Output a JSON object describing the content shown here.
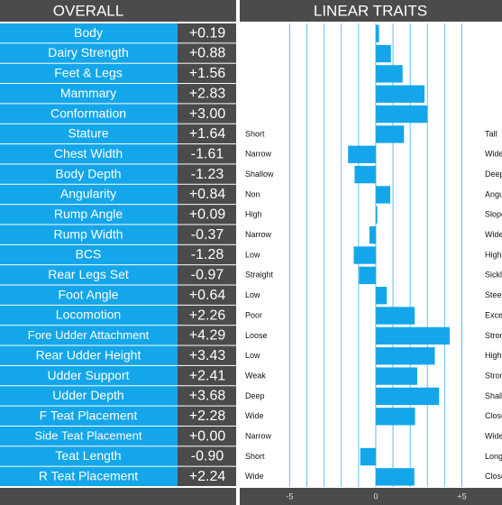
{
  "chart_data": {
    "type": "diverging-bar",
    "title": "OVERALL",
    "subtitle": "LINEAR TRAITS",
    "categories": [
      "Body",
      "Dairy Strength",
      "Feet & Legs",
      "Mammary",
      "Conformation",
      "Stature",
      "Chest Width",
      "Body Depth",
      "Angularity",
      "Rump Angle",
      "Rump Width",
      "BCS",
      "Rear Legs Set",
      "Foot Angle",
      "Locomotion",
      "Fore Udder Attachment",
      "Rear Udder Height",
      "Udder Support",
      "Udder Depth",
      "F Teat Placement",
      "Side Teat Placement",
      "Teat Length",
      "R Teat Placement"
    ],
    "values": [
      0.19,
      0.88,
      1.56,
      2.83,
      3.0,
      1.64,
      -1.61,
      -1.23,
      0.84,
      0.09,
      -0.37,
      -1.28,
      -0.97,
      0.64,
      2.26,
      4.29,
      3.43,
      2.41,
      3.68,
      2.28,
      0.0,
      -0.9,
      2.24
    ],
    "value_labels": [
      "+0.19",
      "+0.88",
      "+1.56",
      "+2.83",
      "+3.00",
      "+1.64",
      "-1.61",
      "-1.23",
      "+0.84",
      "+0.09",
      "-0.37",
      "-1.28",
      "-0.97",
      "+0.64",
      "+2.26",
      "+4.29",
      "+3.43",
      "+2.41",
      "+3.68",
      "+2.28",
      "+0.00",
      "-0.90",
      "+2.24"
    ],
    "left_labels": [
      null,
      null,
      null,
      null,
      null,
      "Short",
      "Narrow",
      "Shallow",
      "Non",
      "High",
      "Narrow",
      "Low",
      "Straight",
      "Low",
      "Poor",
      "Loose",
      "Low",
      "Weak",
      "Deep",
      "Wide",
      "Narrow",
      "Short",
      "Wide"
    ],
    "right_labels": [
      null,
      null,
      null,
      null,
      null,
      "Tall",
      "Wide",
      "Deep",
      "Angular",
      "Sloped",
      "Wide",
      "High",
      "Sickle",
      "Steep",
      "Excellent",
      "Strong",
      "High",
      "Strong",
      "Shallow",
      "Close",
      "Wide",
      "Long",
      "Close"
    ],
    "color": "#14a6ea",
    "xlim": [
      -7.9,
      7.33
    ],
    "xticks": [
      -5,
      0,
      {
        "value": 5,
        "label": "+5"
      }
    ],
    "xgrid": [
      -5,
      -4,
      -3,
      -2,
      -1,
      0,
      1,
      2,
      3,
      4,
      5
    ]
  }
}
